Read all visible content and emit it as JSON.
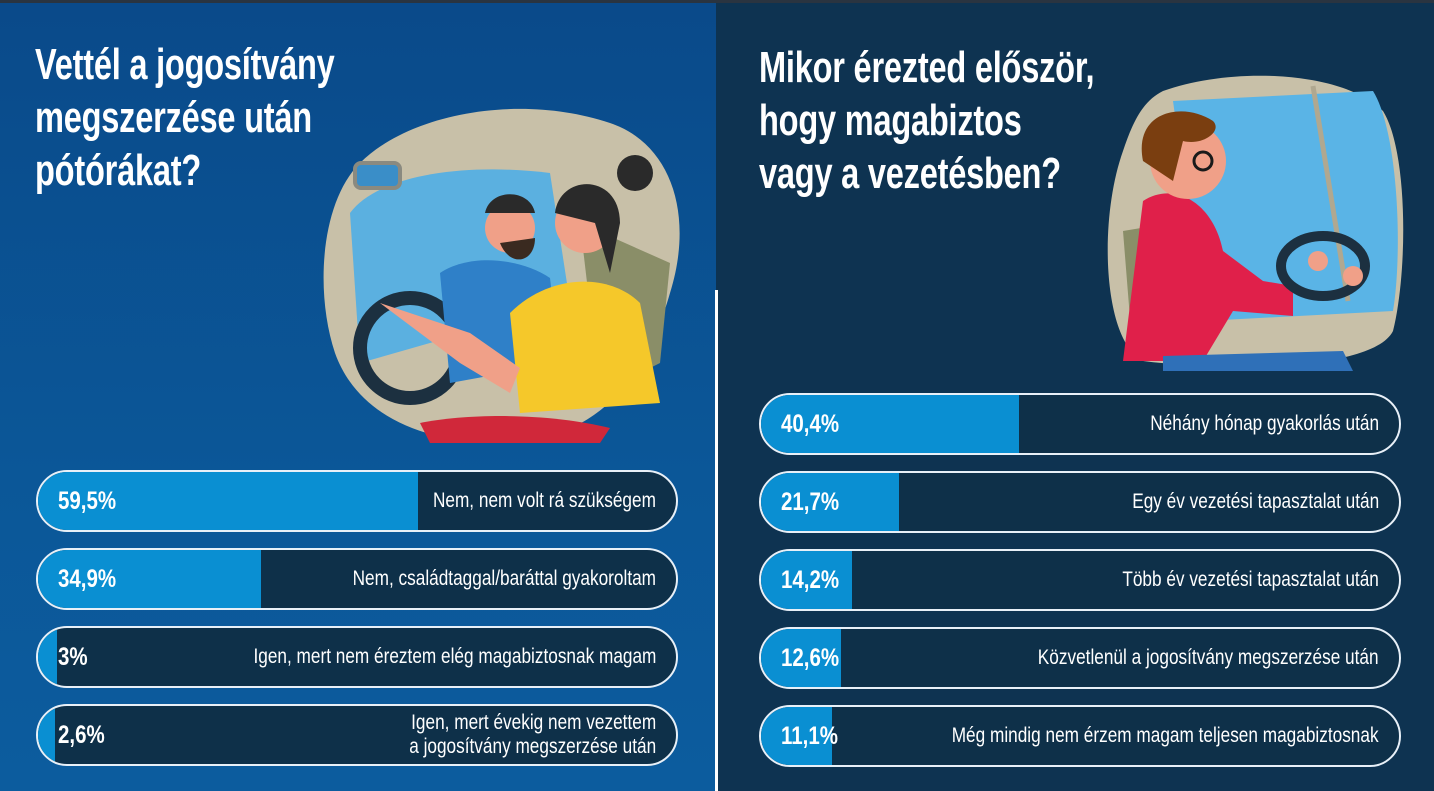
{
  "chart_data": [
    {
      "type": "bar",
      "orientation": "horizontal",
      "title": "Vettél a jogosítvány megszerzése után pótórákat?",
      "title_lines": [
        "Vettél a jogosítvány",
        "megszerzése után",
        "pótórákat?"
      ],
      "categories": [
        "Nem, nem volt rá szükségem",
        "Nem, családtaggal/baráttal gyakoroltam",
        "Igen, mert nem éreztem elég magabiztosnak magam",
        "Igen, mert évekig nem vezettem a jogosítvány megszerzése után"
      ],
      "category_lines": [
        [
          "Nem, nem volt rá szükségem"
        ],
        [
          "Nem, családtaggal/baráttal gyakoroltam"
        ],
        [
          "Igen, mert nem éreztem elég magabiztosnak magam"
        ],
        [
          "Igen, mert évekig nem vezettem",
          "a jogosítvány megszerzése után"
        ]
      ],
      "values": [
        59.5,
        34.9,
        3,
        2.6
      ],
      "value_labels": [
        "59,5%",
        "34,9%",
        "3%",
        "2,6%"
      ],
      "xlim": [
        0,
        100
      ],
      "unit": "%"
    },
    {
      "type": "bar",
      "orientation": "horizontal",
      "title": "Mikor érezted először, hogy magabiztos vagy a vezetésben?",
      "title_lines": [
        "Mikor érezted először,",
        "hogy magabiztos",
        "vagy a vezetésben?"
      ],
      "categories": [
        "Néhány hónap gyakorlás után",
        "Egy év vezetési tapasztalat után",
        "Több év vezetési tapasztalat után",
        "Közvetlenül a jogosítvány megszerzése után",
        "Még mindig nem érzem magam teljesen magabiztosnak"
      ],
      "category_lines": [
        [
          "Néhány hónap gyakorlás után"
        ],
        [
          "Egy év vezetési tapasztalat után"
        ],
        [
          "Több év vezetési tapasztalat után"
        ],
        [
          "Közvetlenül a jogosítvány megszerzése után"
        ],
        [
          "Még mindig nem érzem magam teljesen magabiztosnak"
        ]
      ],
      "values": [
        40.4,
        21.7,
        14.2,
        12.6,
        11.1
      ],
      "value_labels": [
        "40,4%",
        "21,7%",
        "14,2%",
        "12,6%",
        "11,1%"
      ],
      "xlim": [
        0,
        100
      ],
      "unit": "%"
    }
  ],
  "colors": {
    "left_background": "#0b5496",
    "right_background": "#0e3351",
    "bar_fill": "#0a8fd2",
    "bar_track": "#0e3049",
    "bar_border": "#e8f0f8",
    "text": "#ffffff"
  },
  "illustrations": {
    "left": "couple-driving-car-illustration",
    "right": "man-with-glasses-driving-illustration"
  }
}
